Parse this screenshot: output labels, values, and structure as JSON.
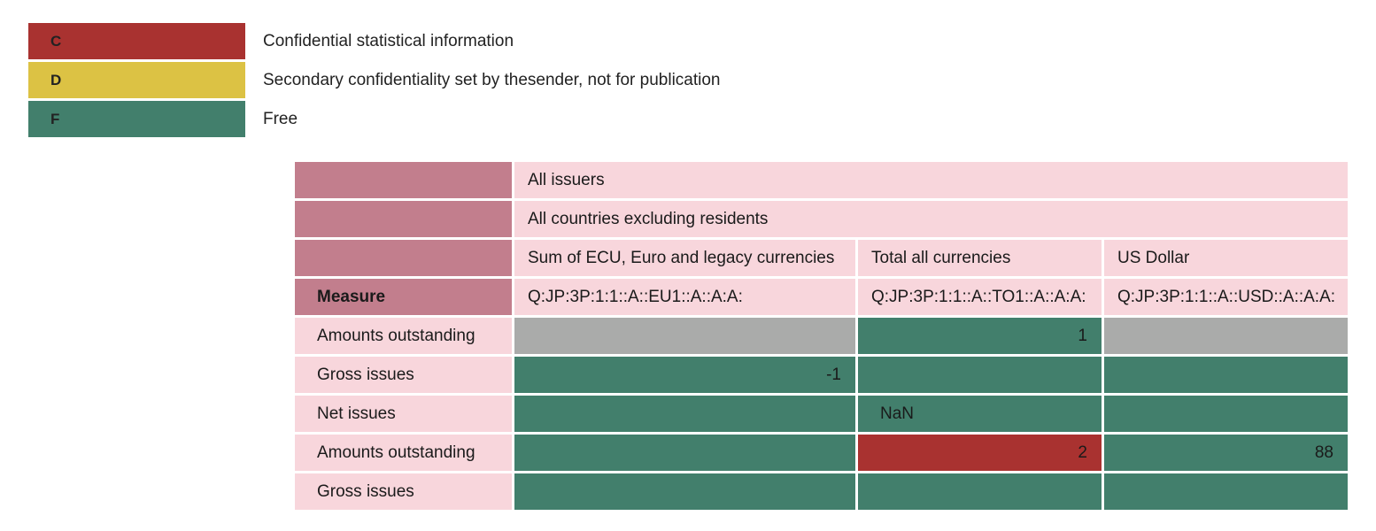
{
  "legend": [
    {
      "code": "C",
      "label": "Confidential statistical information",
      "color": "#a93230"
    },
    {
      "code": "D",
      "label": "Secondary confidentiality set by thesender, not for publication",
      "color": "#dcc244"
    },
    {
      "code": "F",
      "label": "Free",
      "color": "#427f6c"
    }
  ],
  "table": {
    "issuer": "All issuers",
    "area": "All countries excluding residents",
    "currencies": [
      "Sum of ECU, Euro and legacy currencies",
      "Total all currencies",
      "US Dollar"
    ],
    "measure_label": "Measure",
    "series_keys": [
      "Q:JP:3P:1:1::A::EU1::A::A:A:",
      "Q:JP:3P:1:1::A::TO1::A::A:A:",
      "Q:JP:3P:1:1::A::USD::A::A:A:"
    ],
    "rows": [
      {
        "label": "Amounts outstanding",
        "cells": [
          {
            "value": "",
            "status": "empty"
          },
          {
            "value": "1",
            "status": "F"
          },
          {
            "value": "",
            "status": "empty"
          }
        ]
      },
      {
        "label": "Gross issues",
        "cells": [
          {
            "value": "-1",
            "status": "F"
          },
          {
            "value": "",
            "status": "F"
          },
          {
            "value": "",
            "status": "F"
          }
        ]
      },
      {
        "label": "Net issues",
        "cells": [
          {
            "value": "",
            "status": "F"
          },
          {
            "value": "NaN",
            "status": "F"
          },
          {
            "value": "",
            "status": "F"
          }
        ]
      },
      {
        "label": "Amounts outstanding",
        "cells": [
          {
            "value": "",
            "status": "F"
          },
          {
            "value": "2",
            "status": "C"
          },
          {
            "value": "88",
            "status": "F"
          }
        ]
      },
      {
        "label": "Gross issues",
        "cells": [
          {
            "value": "",
            "status": "F"
          },
          {
            "value": "",
            "status": "F"
          },
          {
            "value": "",
            "status": "F"
          }
        ]
      }
    ]
  }
}
